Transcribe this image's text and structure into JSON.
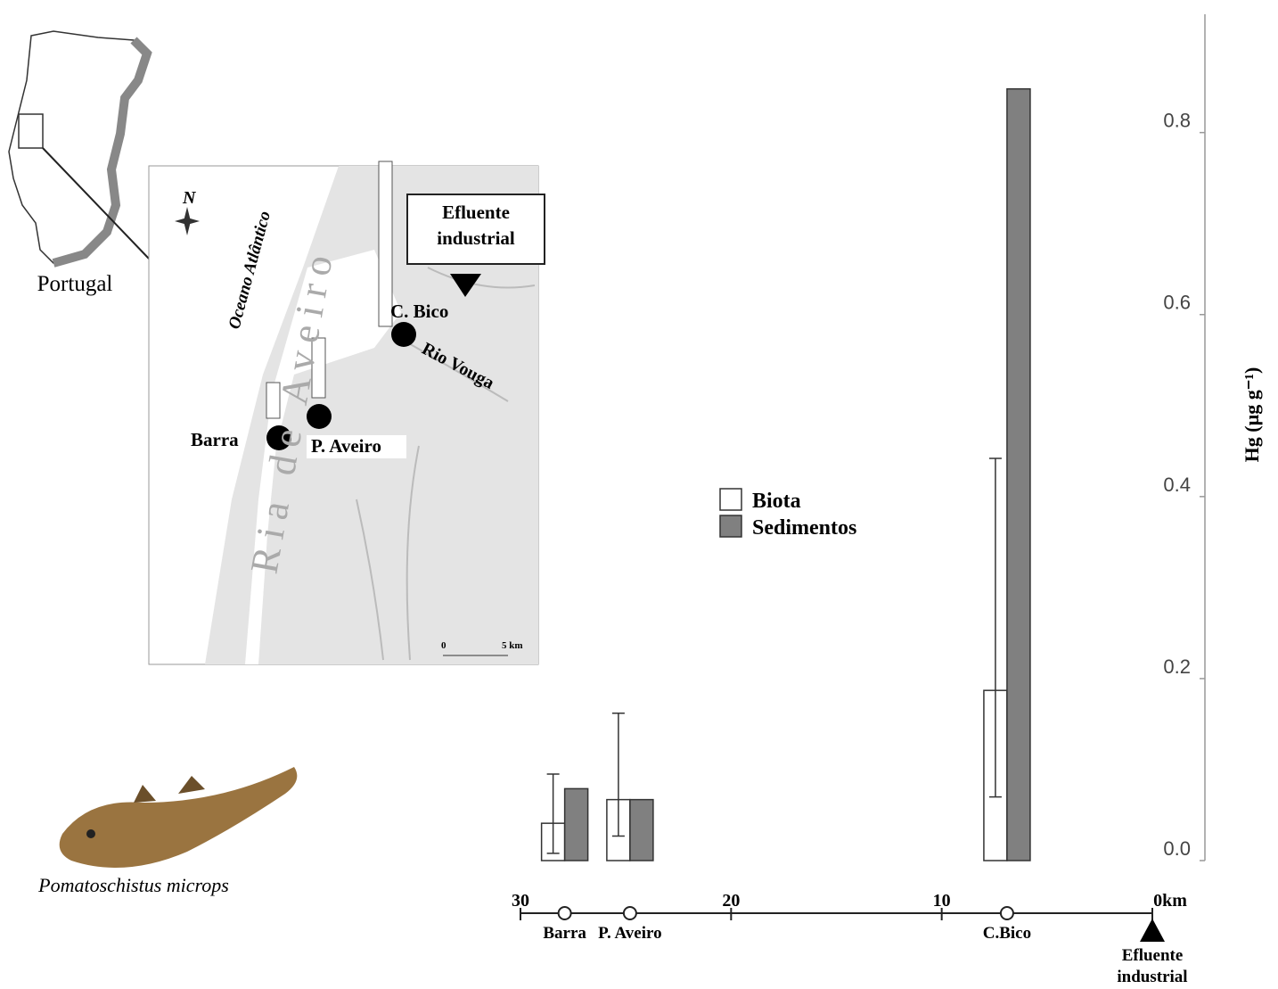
{
  "portugal_label": "Portugal",
  "species": "Pomatoschistus microps",
  "map": {
    "ocean": "Oceano Atlântico",
    "lagoon": "Ria de Aveiro",
    "river": "Rio Vouga",
    "north": "N",
    "effluent": "Efluente industrial",
    "sites": [
      "Barra",
      "P. Aveiro",
      "C. Bico"
    ],
    "scale_start": "0",
    "scale_end": "5 km"
  },
  "chart_data": {
    "type": "bar",
    "ylabel": "Hg (µg g⁻¹)",
    "x": [
      27.9,
      24.8,
      6.9
    ],
    "categories": [
      "Barra",
      "P. Aveiro",
      "C.Bico"
    ],
    "series": [
      {
        "name": "Biota",
        "color": "#ffffff",
        "values": [
          0.041,
          0.067,
          0.187
        ],
        "errors_upper": [
          0.054,
          0.095,
          0.255
        ],
        "errors_lower": [
          0.033,
          0.04,
          0.117
        ]
      },
      {
        "name": "Sedimentos",
        "color": "#808080",
        "values": [
          0.079,
          0.067,
          0.848
        ]
      }
    ],
    "ylim": [
      0,
      0.93
    ],
    "yticks": [
      {
        "value": 0,
        "label": "0.0"
      },
      0.2,
      0.4,
      0.6,
      0.8
    ],
    "xlim": [
      30,
      0
    ],
    "xticks": [
      30,
      20,
      10,
      {
        "value": 0,
        "label": "0km"
      }
    ],
    "annotation": {
      "x": 0,
      "label": "Efluente industrial"
    },
    "legend": "center"
  }
}
